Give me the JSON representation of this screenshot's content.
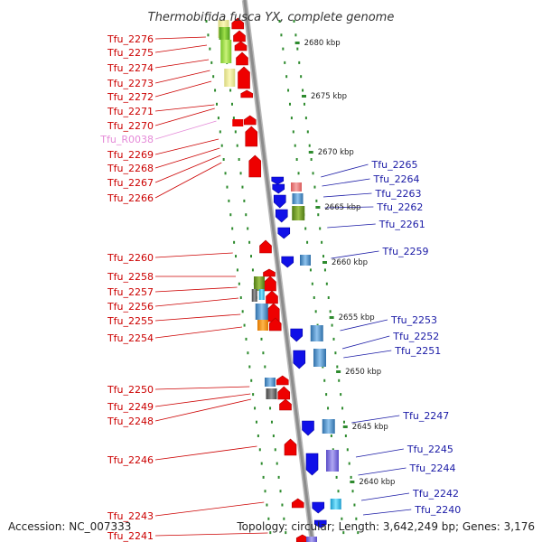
{
  "title": "Thermobifida fusca YX, complete genome",
  "footer": {
    "accession": "Accession: NC_007333",
    "topology": "Topology: circular; Length: 3,642,249 bp; Genes: 3,176"
  },
  "colors": {
    "forward_label": "#cc0000",
    "reverse_label": "#1a1aa6",
    "rna_label": "#e58ad8",
    "backbone": "#8c8c8c",
    "tick": "#2e8b2e"
  },
  "kbp_labels": [
    "2680 kbp",
    "2675 kbp",
    "2670 kbp",
    "2665 kbp",
    "2660 kbp",
    "2655 kbp",
    "2650 kbp",
    "2645 kbp",
    "2640 kbp"
  ],
  "left_genes": [
    {
      "label": "Tfu_2276",
      "type": "forward"
    },
    {
      "label": "Tfu_2275",
      "type": "forward"
    },
    {
      "label": "Tfu_2274",
      "type": "forward"
    },
    {
      "label": "Tfu_2273",
      "type": "forward"
    },
    {
      "label": "Tfu_2272",
      "type": "forward"
    },
    {
      "label": "Tfu_2271",
      "type": "forward"
    },
    {
      "label": "Tfu_2270",
      "type": "forward"
    },
    {
      "label": "Tfu_R0038",
      "type": "rna"
    },
    {
      "label": "Tfu_2269",
      "type": "forward"
    },
    {
      "label": "Tfu_2268",
      "type": "forward"
    },
    {
      "label": "Tfu_2267",
      "type": "forward"
    },
    {
      "label": "Tfu_2266",
      "type": "forward"
    },
    {
      "label": "Tfu_2260",
      "type": "forward"
    },
    {
      "label": "Tfu_2258",
      "type": "forward"
    },
    {
      "label": "Tfu_2257",
      "type": "forward"
    },
    {
      "label": "Tfu_2256",
      "type": "forward"
    },
    {
      "label": "Tfu_2255",
      "type": "forward"
    },
    {
      "label": "Tfu_2254",
      "type": "forward"
    },
    {
      "label": "Tfu_2250",
      "type": "forward"
    },
    {
      "label": "Tfu_2249",
      "type": "forward"
    },
    {
      "label": "Tfu_2248",
      "type": "forward"
    },
    {
      "label": "Tfu_2246",
      "type": "forward"
    },
    {
      "label": "Tfu_2243",
      "type": "forward"
    },
    {
      "label": "Tfu_2241",
      "type": "forward"
    }
  ],
  "right_genes": [
    {
      "label": "Tfu_2265",
      "type": "reverse"
    },
    {
      "label": "Tfu_2264",
      "type": "reverse"
    },
    {
      "label": "Tfu_2263",
      "type": "reverse"
    },
    {
      "label": "Tfu_2262",
      "type": "reverse"
    },
    {
      "label": "Tfu_2261",
      "type": "reverse"
    },
    {
      "label": "Tfu_2259",
      "type": "reverse"
    },
    {
      "label": "Tfu_2253",
      "type": "reverse"
    },
    {
      "label": "Tfu_2252",
      "type": "reverse"
    },
    {
      "label": "Tfu_2251",
      "type": "reverse"
    },
    {
      "label": "Tfu_2247",
      "type": "reverse"
    },
    {
      "label": "Tfu_2245",
      "type": "reverse"
    },
    {
      "label": "Tfu_2244",
      "type": "reverse"
    },
    {
      "label": "Tfu_2242",
      "type": "reverse"
    },
    {
      "label": "Tfu_2240",
      "type": "reverse"
    }
  ]
}
